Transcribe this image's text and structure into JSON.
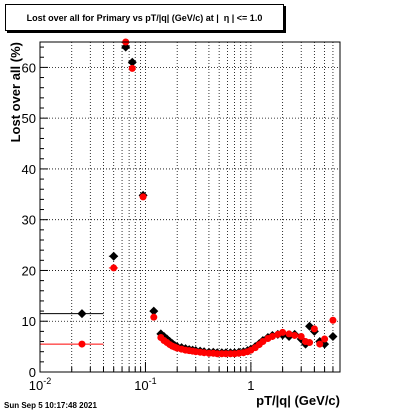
{
  "chart_data": {
    "type": "scatter",
    "title": "Lost over all for Primary vs pT/|q| (GeV/c) at |  η | <= 1.0",
    "xlabel": "pT/|q| (GeV/c)",
    "ylabel": "Lost over all (%)",
    "x_scale": "log",
    "xlim": [
      0.01,
      7
    ],
    "ylim": [
      0,
      65
    ],
    "x_tick_labels": [
      "10^-2",
      "10^-1",
      "1"
    ],
    "y_ticks": [
      0,
      10,
      20,
      30,
      40,
      50,
      60
    ],
    "grid": true,
    "legend": "none",
    "series": [
      {
        "color": "#000000",
        "marker": "diamond",
        "points": [
          {
            "x": 0.025,
            "y": 11.5,
            "xlo": 0.01,
            "xhi": 0.04
          },
          {
            "x": 0.05,
            "y": 22.8,
            "xlo": 0.045,
            "xhi": 0.055
          },
          {
            "x": 0.065,
            "y": 64.0,
            "xlo": 0.062,
            "xhi": 0.068
          },
          {
            "x": 0.075,
            "y": 61.0,
            "xlo": 0.072,
            "xhi": 0.078
          },
          {
            "x": 0.095,
            "y": 34.8,
            "xlo": 0.088,
            "xhi": 0.102
          },
          {
            "x": 0.12,
            "y": 12.0,
            "xlo": 0.115,
            "xhi": 0.125
          },
          {
            "x": 0.14,
            "y": 7.5
          },
          {
            "x": 0.15,
            "y": 7.0
          },
          {
            "x": 0.16,
            "y": 6.5
          },
          {
            "x": 0.17,
            "y": 6.0
          },
          {
            "x": 0.18,
            "y": 5.6
          },
          {
            "x": 0.19,
            "y": 5.2
          },
          {
            "x": 0.2,
            "y": 5.0
          },
          {
            "x": 0.22,
            "y": 4.8
          },
          {
            "x": 0.24,
            "y": 4.6
          },
          {
            "x": 0.26,
            "y": 4.4
          },
          {
            "x": 0.28,
            "y": 4.3
          },
          {
            "x": 0.3,
            "y": 4.2
          },
          {
            "x": 0.33,
            "y": 4.1
          },
          {
            "x": 0.36,
            "y": 4.0
          },
          {
            "x": 0.4,
            "y": 3.9
          },
          {
            "x": 0.44,
            "y": 3.9
          },
          {
            "x": 0.48,
            "y": 3.8
          },
          {
            "x": 0.53,
            "y": 3.8
          },
          {
            "x": 0.58,
            "y": 3.8
          },
          {
            "x": 0.64,
            "y": 3.8
          },
          {
            "x": 0.7,
            "y": 3.8
          },
          {
            "x": 0.77,
            "y": 3.9
          },
          {
            "x": 0.85,
            "y": 4.0
          },
          {
            "x": 0.93,
            "y": 4.2
          },
          {
            "x": 1.0,
            "y": 4.5
          },
          {
            "x": 1.1,
            "y": 5.0
          },
          {
            "x": 1.2,
            "y": 5.6
          },
          {
            "x": 1.3,
            "y": 6.2
          },
          {
            "x": 1.45,
            "y": 6.8
          },
          {
            "x": 1.6,
            "y": 7.2
          },
          {
            "x": 1.8,
            "y": 7.4
          },
          {
            "x": 2.0,
            "y": 7.3
          },
          {
            "x": 2.3,
            "y": 7.0
          },
          {
            "x": 2.6,
            "y": 7.4
          },
          {
            "x": 3.0,
            "y": 6.5
          },
          {
            "x": 3.3,
            "y": 5.5
          },
          {
            "x": 3.6,
            "y": 9.0
          },
          {
            "x": 4.0,
            "y": 8.0
          },
          {
            "x": 4.5,
            "y": 6.0
          },
          {
            "x": 5.0,
            "y": 5.5
          },
          {
            "x": 6.0,
            "y": 7.0
          }
        ]
      },
      {
        "color": "#ff0000",
        "marker": "circle",
        "points": [
          {
            "x": 0.025,
            "y": 5.5,
            "xlo": 0.01,
            "xhi": 0.04
          },
          {
            "x": 0.05,
            "y": 20.5,
            "xlo": 0.045,
            "xhi": 0.055
          },
          {
            "x": 0.065,
            "y": 65.0,
            "xlo": 0.062,
            "xhi": 0.068
          },
          {
            "x": 0.075,
            "y": 59.8,
            "xlo": 0.072,
            "xhi": 0.078
          },
          {
            "x": 0.095,
            "y": 34.5,
            "xlo": 0.088,
            "xhi": 0.102
          },
          {
            "x": 0.12,
            "y": 10.8,
            "xlo": 0.115,
            "xhi": 0.125
          },
          {
            "x": 0.14,
            "y": 6.8
          },
          {
            "x": 0.15,
            "y": 6.2
          },
          {
            "x": 0.16,
            "y": 5.8
          },
          {
            "x": 0.17,
            "y": 5.4
          },
          {
            "x": 0.18,
            "y": 5.1
          },
          {
            "x": 0.19,
            "y": 4.9
          },
          {
            "x": 0.2,
            "y": 4.7
          },
          {
            "x": 0.22,
            "y": 4.5
          },
          {
            "x": 0.24,
            "y": 4.3
          },
          {
            "x": 0.26,
            "y": 4.2
          },
          {
            "x": 0.28,
            "y": 4.1
          },
          {
            "x": 0.3,
            "y": 4.0
          },
          {
            "x": 0.33,
            "y": 3.9
          },
          {
            "x": 0.36,
            "y": 3.8
          },
          {
            "x": 0.4,
            "y": 3.7
          },
          {
            "x": 0.44,
            "y": 3.7
          },
          {
            "x": 0.48,
            "y": 3.6
          },
          {
            "x": 0.53,
            "y": 3.6
          },
          {
            "x": 0.58,
            "y": 3.6
          },
          {
            "x": 0.64,
            "y": 3.6
          },
          {
            "x": 0.7,
            "y": 3.6
          },
          {
            "x": 0.77,
            "y": 3.7
          },
          {
            "x": 0.85,
            "y": 3.8
          },
          {
            "x": 0.93,
            "y": 4.0
          },
          {
            "x": 1.0,
            "y": 4.3
          },
          {
            "x": 1.1,
            "y": 4.8
          },
          {
            "x": 1.2,
            "y": 5.4
          },
          {
            "x": 1.3,
            "y": 6.0
          },
          {
            "x": 1.45,
            "y": 6.6
          },
          {
            "x": 1.6,
            "y": 7.0
          },
          {
            "x": 1.8,
            "y": 7.4
          },
          {
            "x": 2.0,
            "y": 7.8
          },
          {
            "x": 2.3,
            "y": 7.5
          },
          {
            "x": 2.6,
            "y": 7.2
          },
          {
            "x": 3.0,
            "y": 7.0
          },
          {
            "x": 3.3,
            "y": 6.0
          },
          {
            "x": 3.6,
            "y": 5.8
          },
          {
            "x": 4.0,
            "y": 8.5
          },
          {
            "x": 4.5,
            "y": 5.5
          },
          {
            "x": 5.0,
            "y": 6.5
          },
          {
            "x": 6.0,
            "y": 10.2
          }
        ]
      }
    ]
  },
  "footer": {
    "timestamp": "Sun Sep  5 10:17:48 2021"
  }
}
